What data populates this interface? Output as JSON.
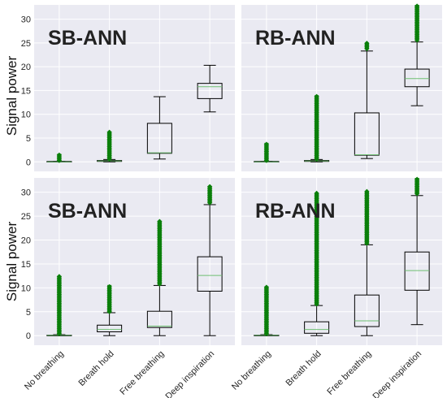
{
  "colors": {
    "outlier": "#0a7f0a",
    "median": "#6fbf73",
    "box": "#000000",
    "panel_bg": "#eaeaf2"
  },
  "chart_data": [
    {
      "type": "box",
      "title": "SB-ANN",
      "ylabel": "Signal power",
      "ylim": [
        -2,
        33
      ],
      "yticks": [
        0,
        5,
        10,
        15,
        20,
        25,
        30
      ],
      "categories": [
        "No breathing",
        "Breath hold",
        "Free breathing",
        "Deep inspiration"
      ],
      "boxes": [
        {
          "whislo": 0,
          "q1": 0,
          "med": 0,
          "q3": 0.1,
          "whishi": 0.1,
          "fliers": {
            "from": 0.3,
            "to": 1.7
          }
        },
        {
          "whislo": 0,
          "q1": 0.1,
          "med": 0.2,
          "q3": 0.3,
          "whishi": 0.5,
          "fliers": {
            "from": 0.6,
            "to": 6.3
          }
        },
        {
          "whislo": 0.6,
          "q1": 1.8,
          "med": 1.9,
          "q3": 8.1,
          "whishi": 13.7,
          "fliers": null
        },
        {
          "whislo": 10.5,
          "q1": 13.3,
          "med": 15.8,
          "q3": 16.5,
          "whishi": 20.3,
          "fliers": null
        }
      ]
    },
    {
      "type": "box",
      "title": "RB-ANN",
      "ylabel": "",
      "ylim": [
        -2,
        33
      ],
      "yticks": [
        0,
        5,
        10,
        15,
        20,
        25,
        30
      ],
      "categories": [
        "No breathing",
        "Breath hold",
        "Free breathing",
        "Deep inspiration"
      ],
      "boxes": [
        {
          "whislo": 0,
          "q1": 0,
          "med": 0,
          "q3": 0.1,
          "whishi": 0.1,
          "fliers": {
            "from": 0.3,
            "to": 4.0
          }
        },
        {
          "whislo": 0,
          "q1": 0.1,
          "med": 0.2,
          "q3": 0.3,
          "whishi": 0.5,
          "fliers": {
            "from": 0.6,
            "to": 14.0
          }
        },
        {
          "whislo": 0.7,
          "q1": 1.4,
          "med": 1.5,
          "q3": 10.3,
          "whishi": 23.3,
          "fliers": {
            "from": 23.8,
            "to": 25.0
          }
        },
        {
          "whislo": 11.8,
          "q1": 15.8,
          "med": 17.5,
          "q3": 19.5,
          "whishi": 25.2,
          "fliers": {
            "from": 25.6,
            "to": 33.0
          }
        }
      ]
    },
    {
      "type": "box",
      "title": "SB-ANN",
      "ylabel": "Signal power",
      "ylim": [
        -2,
        33
      ],
      "yticks": [
        0,
        5,
        10,
        15,
        20,
        25,
        30
      ],
      "categories": [
        "No breathing",
        "Breath hold",
        "Free breathing",
        "Deep inspiration"
      ],
      "boxes": [
        {
          "whislo": 0,
          "q1": 0,
          "med": 0.05,
          "q3": 0.1,
          "whishi": 0.2,
          "fliers": {
            "from": 0.4,
            "to": 12.5
          }
        },
        {
          "whislo": 0,
          "q1": 0.8,
          "med": 1.3,
          "q3": 2.2,
          "whishi": 4.8,
          "fliers": {
            "from": 5.0,
            "to": 10.6
          }
        },
        {
          "whislo": 0,
          "q1": 1.7,
          "med": 2.0,
          "q3": 5.1,
          "whishi": 10.5,
          "fliers": {
            "from": 10.8,
            "to": 24.0
          }
        },
        {
          "whislo": 0,
          "q1": 9.3,
          "med": 12.6,
          "q3": 16.5,
          "whishi": 27.4,
          "fliers": {
            "from": 27.8,
            "to": 31.3
          }
        }
      ]
    },
    {
      "type": "box",
      "title": "RB-ANN",
      "ylabel": "",
      "ylim": [
        -2,
        33
      ],
      "yticks": [
        0,
        5,
        10,
        15,
        20,
        25,
        30
      ],
      "categories": [
        "No breathing",
        "Breath hold",
        "Free breathing",
        "Deep inspiration"
      ],
      "boxes": [
        {
          "whislo": 0,
          "q1": 0,
          "med": 0.05,
          "q3": 0.1,
          "whishi": 0.2,
          "fliers": {
            "from": 0.4,
            "to": 10.3
          }
        },
        {
          "whislo": 0,
          "q1": 0.5,
          "med": 1.3,
          "q3": 2.9,
          "whishi": 6.3,
          "fliers": {
            "from": 6.6,
            "to": 29.8
          }
        },
        {
          "whislo": 0,
          "q1": 1.9,
          "med": 3.1,
          "q3": 8.5,
          "whishi": 19.0,
          "fliers": {
            "from": 19.3,
            "to": 30.2
          }
        },
        {
          "whislo": 2.3,
          "q1": 9.5,
          "med": 13.6,
          "q3": 17.5,
          "whishi": 29.3,
          "fliers": {
            "from": 29.7,
            "to": 33.0
          }
        }
      ]
    }
  ]
}
